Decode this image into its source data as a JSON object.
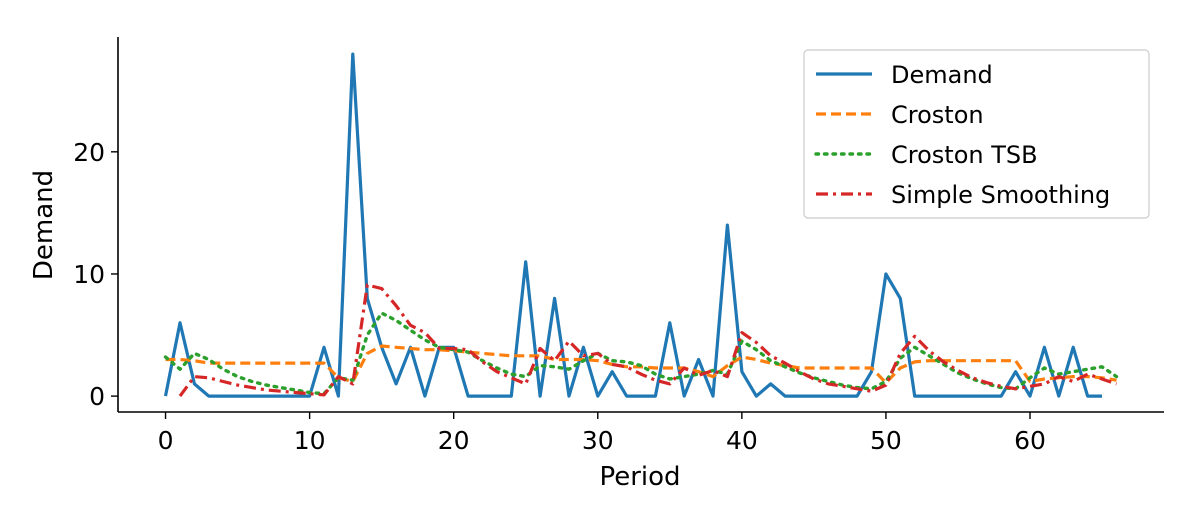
{
  "chart_data": {
    "type": "line",
    "title": "",
    "xlabel": "Period",
    "ylabel": "Demand",
    "xlim": [
      -3.3,
      69.3
    ],
    "ylim": [
      -1.3,
      29.4
    ],
    "x_ticks": [
      0,
      10,
      20,
      30,
      40,
      50,
      60
    ],
    "y_ticks": [
      0,
      10,
      20
    ],
    "x_tick_labels": [
      "0",
      "10",
      "20",
      "30",
      "40",
      "50",
      "60"
    ],
    "y_tick_labels": [
      "0",
      "10",
      "20"
    ],
    "grid": false,
    "legend_position": "top-right",
    "series": [
      {
        "name": "Demand",
        "color": "#1f77b4",
        "style": "solid",
        "x": [
          0,
          1,
          2,
          3,
          4,
          5,
          6,
          7,
          8,
          9,
          10,
          11,
          12,
          13,
          14,
          15,
          16,
          17,
          18,
          19,
          20,
          21,
          22,
          23,
          24,
          25,
          26,
          27,
          28,
          29,
          30,
          31,
          32,
          33,
          34,
          35,
          36,
          37,
          38,
          39,
          40,
          41,
          42,
          43,
          44,
          45,
          46,
          47,
          48,
          49,
          50,
          51,
          52,
          53,
          54,
          55,
          56,
          57,
          58,
          59,
          60,
          61,
          62,
          63,
          64,
          65
        ],
        "values": [
          0,
          6,
          1,
          0,
          0,
          0,
          0,
          0,
          0,
          0,
          0,
          4,
          0,
          28,
          8,
          4,
          1,
          4,
          0,
          4,
          4,
          0,
          0,
          0,
          0,
          11,
          0,
          8,
          0,
          4,
          0,
          2,
          0,
          0,
          0,
          6,
          0,
          3,
          0,
          14,
          2,
          0,
          1,
          0,
          0,
          0,
          0,
          0,
          0,
          2,
          10,
          8,
          0,
          0,
          0,
          0,
          0,
          0,
          0,
          2,
          0,
          4,
          0,
          4,
          0,
          0
        ]
      },
      {
        "name": "Croston",
        "color": "#ff7f0e",
        "style": "dashed",
        "x": [
          0,
          1,
          2,
          3,
          4,
          5,
          6,
          7,
          8,
          9,
          10,
          11,
          12,
          13,
          14,
          15,
          16,
          17,
          18,
          19,
          20,
          21,
          22,
          23,
          24,
          25,
          26,
          27,
          28,
          29,
          30,
          31,
          32,
          33,
          34,
          35,
          36,
          37,
          38,
          39,
          40,
          41,
          42,
          43,
          44,
          45,
          46,
          47,
          48,
          49,
          50,
          51,
          52,
          53,
          54,
          55,
          56,
          57,
          58,
          59,
          60,
          61,
          62,
          63,
          64,
          65,
          66
        ],
        "values": [
          3.0,
          3.0,
          2.9,
          2.7,
          2.7,
          2.7,
          2.7,
          2.7,
          2.7,
          2.7,
          2.7,
          2.7,
          1.5,
          1.2,
          3.5,
          4.1,
          4.0,
          3.9,
          3.8,
          3.8,
          3.7,
          3.6,
          3.5,
          3.4,
          3.3,
          3.3,
          3.3,
          3.0,
          3.0,
          3.0,
          2.9,
          2.6,
          2.4,
          2.4,
          2.3,
          2.3,
          2.3,
          2.0,
          1.6,
          2.5,
          3.2,
          3.0,
          2.7,
          2.5,
          2.3,
          2.3,
          2.3,
          2.3,
          2.3,
          2.3,
          1.1,
          2.3,
          2.8,
          2.9,
          2.9,
          2.9,
          2.9,
          2.9,
          2.9,
          2.9,
          1.2,
          1.4,
          1.5,
          1.6,
          1.6,
          1.5,
          1.3
        ]
      },
      {
        "name": "Croston TSB",
        "color": "#2ca02c",
        "style": "dotted",
        "x": [
          0,
          1,
          2,
          3,
          4,
          5,
          6,
          7,
          8,
          9,
          10,
          11,
          12,
          13,
          14,
          15,
          16,
          17,
          18,
          19,
          20,
          21,
          22,
          23,
          24,
          25,
          26,
          27,
          28,
          29,
          30,
          31,
          32,
          33,
          34,
          35,
          36,
          37,
          38,
          39,
          40,
          41,
          42,
          43,
          44,
          45,
          46,
          47,
          48,
          49,
          50,
          51,
          52,
          53,
          54,
          55,
          56,
          57,
          58,
          59,
          60,
          61,
          62,
          63,
          64,
          65,
          66
        ],
        "values": [
          3.2,
          2.2,
          3.5,
          3.0,
          2.2,
          1.6,
          1.2,
          0.9,
          0.7,
          0.5,
          0.3,
          0.2,
          1.5,
          1.3,
          5.0,
          6.8,
          6.2,
          5.4,
          4.6,
          4.0,
          3.8,
          3.6,
          2.9,
          2.3,
          1.8,
          1.6,
          2.5,
          2.4,
          2.2,
          2.9,
          3.5,
          2.9,
          2.8,
          2.5,
          1.8,
          1.4,
          1.6,
          1.8,
          2.1,
          1.8,
          4.5,
          3.8,
          2.9,
          2.4,
          1.9,
          1.5,
          1.2,
          0.9,
          0.7,
          0.6,
          1.2,
          3.1,
          4.0,
          3.3,
          2.6,
          1.9,
          1.4,
          1.0,
          0.7,
          0.6,
          1.5,
          2.3,
          1.8,
          2.0,
          2.2,
          2.4,
          1.6
        ]
      },
      {
        "name": "Simple Smoothing",
        "color": "#d62728",
        "style": "dashdot",
        "x": [
          1,
          2,
          3,
          4,
          5,
          6,
          7,
          8,
          9,
          10,
          11,
          12,
          13,
          14,
          15,
          16,
          17,
          18,
          19,
          20,
          21,
          22,
          23,
          24,
          25,
          26,
          27,
          28,
          29,
          30,
          31,
          32,
          33,
          34,
          35,
          36,
          37,
          38,
          39,
          40,
          41,
          42,
          43,
          44,
          45,
          46,
          47,
          48,
          49,
          50,
          51,
          52,
          53,
          54,
          55,
          56,
          57,
          58,
          59,
          60,
          61,
          62,
          63,
          64,
          65,
          66
        ],
        "values": [
          0.0,
          1.6,
          1.5,
          1.2,
          0.9,
          0.7,
          0.5,
          0.4,
          0.3,
          0.2,
          0.1,
          1.6,
          1.0,
          9.1,
          8.8,
          7.4,
          5.8,
          5.2,
          3.9,
          3.9,
          3.8,
          2.8,
          2.0,
          1.5,
          1.0,
          3.9,
          2.9,
          4.5,
          3.3,
          3.5,
          2.6,
          2.4,
          1.8,
          1.3,
          1.0,
          2.3,
          1.7,
          2.1,
          1.6,
          5.2,
          4.4,
          3.3,
          2.7,
          2.0,
          1.4,
          1.0,
          0.8,
          0.6,
          0.4,
          0.9,
          3.5,
          4.9,
          3.7,
          2.8,
          2.1,
          1.5,
          1.1,
          0.8,
          0.6,
          0.8,
          1.0,
          1.6,
          1.2,
          1.8,
          1.4,
          1.0
        ]
      }
    ]
  }
}
